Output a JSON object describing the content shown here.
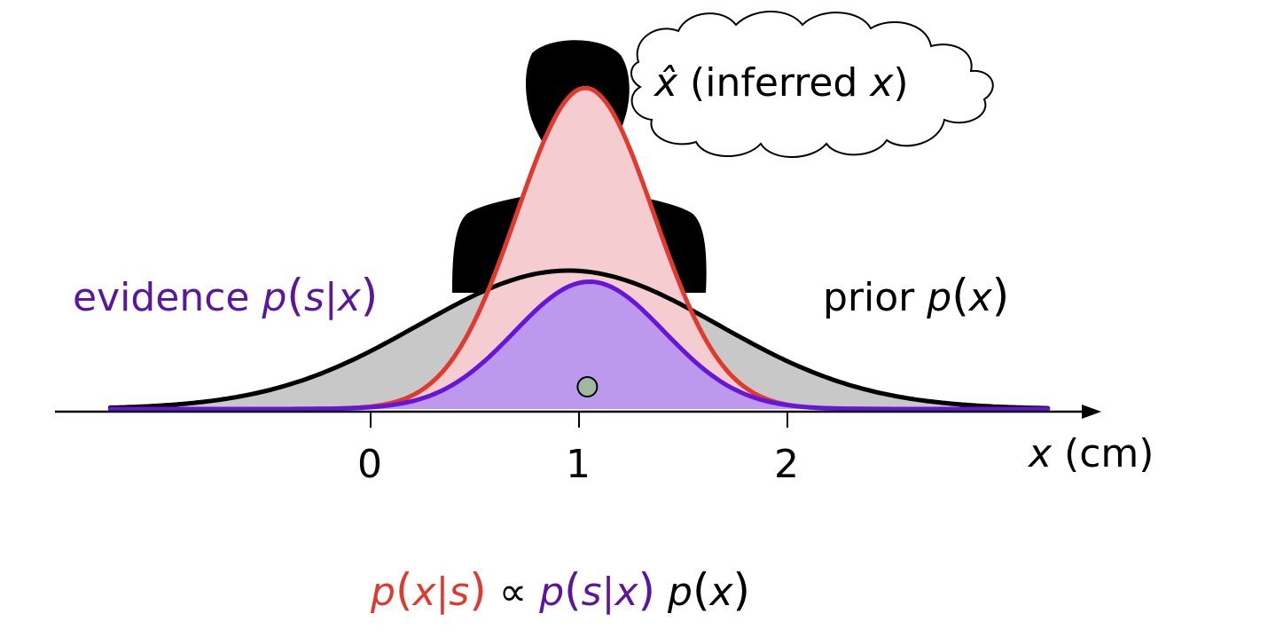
{
  "diagram": {
    "thought_bubble": {
      "var": "x̂",
      "text": "(inferred",
      "var2": "x",
      "close": ")"
    },
    "evidence_label": {
      "word": "evidence",
      "expr_p": "p",
      "expr_s": "s",
      "expr_bar": "|",
      "expr_x": "x"
    },
    "prior_label": {
      "word": "prior",
      "expr_p": "p",
      "expr_x": "x"
    },
    "formula": {
      "p": "p",
      "x": "x",
      "bar": "|",
      "s": "s",
      "propto": "∝"
    },
    "axis": {
      "variable": "x",
      "unit": "(cm)",
      "ticks": [
        "0",
        "1",
        "2"
      ]
    },
    "colors": {
      "posterior": "#e03a2f",
      "posterior_fill": "#f5cccf",
      "evidence": "#6616d9",
      "evidence_fill": "#bd99ee",
      "evidence_text": "#5a169e",
      "prior": "#000000",
      "prior_fill": "#c8c8c8",
      "observation_dot": "#9fb8a2"
    }
  },
  "chart_data": {
    "type": "area",
    "xlabel": "x (cm)",
    "xticks": [
      0,
      1,
      2
    ],
    "series": [
      {
        "name": "prior p(x)",
        "mean": 0.95,
        "sd": 0.72,
        "peak": 0.5
      },
      {
        "name": "evidence p(s|x)",
        "mean": 1.05,
        "sd": 0.36,
        "peak": 0.46
      },
      {
        "name": "p(x|s)",
        "mean": 1.03,
        "sd": 0.33,
        "peak": 1.16
      }
    ],
    "observation": {
      "x": 1.04
    }
  }
}
